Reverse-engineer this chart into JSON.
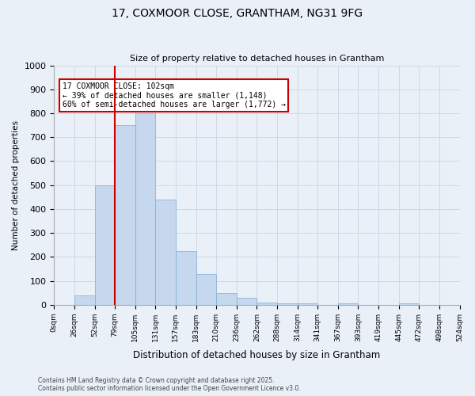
{
  "title": "17, COXMOOR CLOSE, GRANTHAM, NG31 9FG",
  "subtitle": "Size of property relative to detached houses in Grantham",
  "xlabel": "Distribution of detached houses by size in Grantham",
  "ylabel": "Number of detached properties",
  "bar_values": [
    0,
    40,
    500,
    750,
    800,
    440,
    225,
    130,
    50,
    30,
    10,
    5,
    5,
    0,
    5,
    0,
    0,
    5,
    0,
    0
  ],
  "bar_labels": [
    "0sqm",
    "26sqm",
    "52sqm",
    "79sqm",
    "105sqm",
    "131sqm",
    "157sqm",
    "183sqm",
    "210sqm",
    "236sqm",
    "262sqm",
    "288sqm",
    "314sqm",
    "341sqm",
    "367sqm",
    "393sqm",
    "419sqm",
    "445sqm",
    "472sqm",
    "498sqm",
    "524sqm"
  ],
  "bar_color": "#c5d8ed",
  "bar_edge_color": "#7bafd4",
  "grid_color": "#d0d8e4",
  "background_color": "#eaf0f8",
  "vline_x": 3,
  "vline_color": "#cc0000",
  "annotation_text": "17 COXMOOR CLOSE: 102sqm\n← 39% of detached houses are smaller (1,148)\n60% of semi-detached houses are larger (1,772) →",
  "annotation_box_color": "#ffffff",
  "annotation_box_edge": "#cc0000",
  "ylim": [
    0,
    1000
  ],
  "yticks": [
    0,
    100,
    200,
    300,
    400,
    500,
    600,
    700,
    800,
    900,
    1000
  ],
  "footer1": "Contains HM Land Registry data © Crown copyright and database right 2025.",
  "footer2": "Contains public sector information licensed under the Open Government Licence v3.0."
}
